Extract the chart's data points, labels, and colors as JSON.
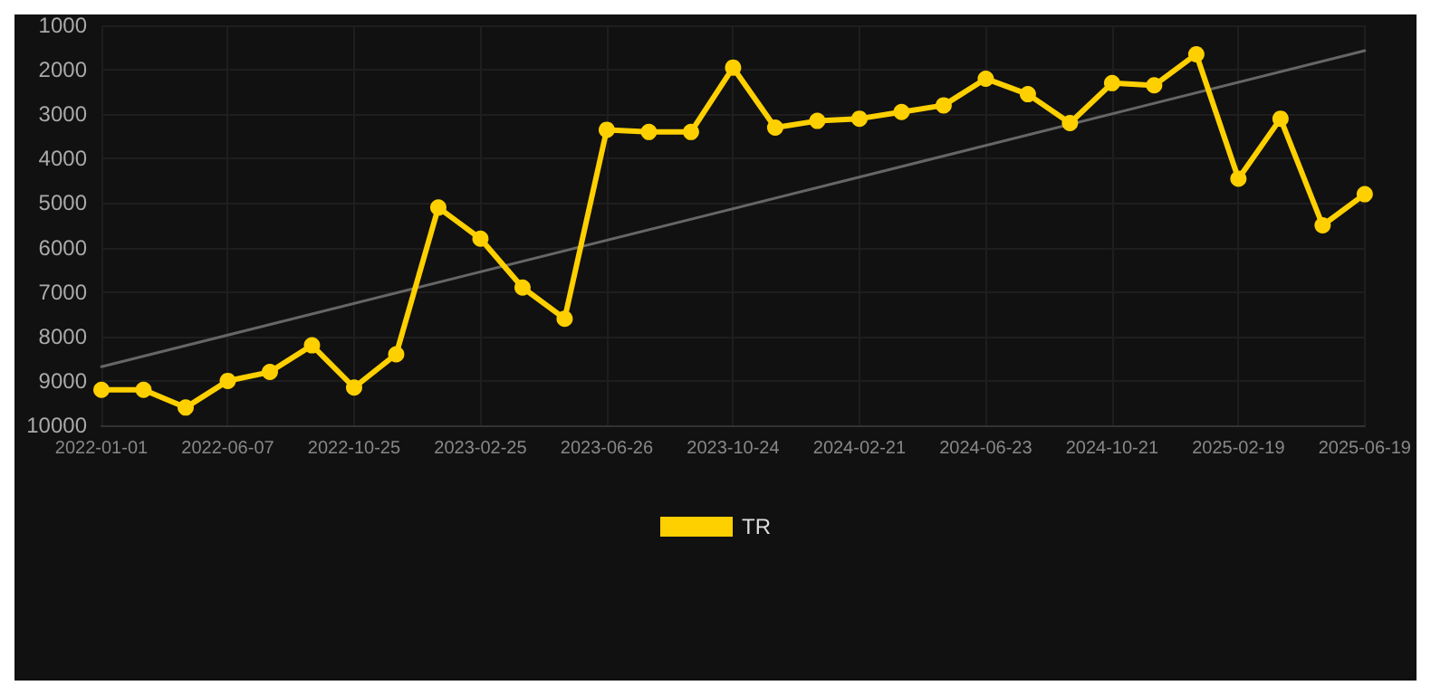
{
  "chart_data": {
    "type": "line",
    "categories": [
      "2022-01-01",
      null,
      null,
      "2022-06-07",
      null,
      null,
      "2022-10-25",
      null,
      null,
      "2023-02-25",
      null,
      null,
      "2023-06-26",
      null,
      null,
      "2023-10-24",
      null,
      null,
      "2024-02-21",
      null,
      null,
      "2024-06-23",
      null,
      null,
      "2024-10-21",
      null,
      null,
      "2025-02-19",
      null,
      null,
      "2025-06-19"
    ],
    "series": [
      {
        "name": "TR",
        "color": "#ffd000",
        "marker": "circle",
        "values": [
          9200,
          9200,
          9600,
          9000,
          8800,
          8200,
          9150,
          8400,
          5100,
          5800,
          6900,
          7600,
          3350,
          3400,
          3400,
          1950,
          3300,
          3150,
          3100,
          2950,
          2800,
          2200,
          2550,
          3200,
          2300,
          2350,
          1650,
          4450,
          3100,
          5500,
          4800
        ]
      },
      {
        "type": "line",
        "color": "#666666",
        "marker": "none",
        "values": [
          8680,
          null,
          null,
          null,
          null,
          null,
          null,
          null,
          null,
          null,
          null,
          null,
          null,
          null,
          null,
          null,
          null,
          null,
          null,
          null,
          null,
          null,
          null,
          null,
          null,
          null,
          null,
          null,
          null,
          null,
          1570
        ]
      }
    ],
    "ylim": [
      10000,
      1000
    ],
    "yticks": [
      1000,
      2000,
      3000,
      4000,
      5000,
      6000,
      7000,
      8000,
      9000,
      10000
    ],
    "grid": true,
    "legend": "bottom",
    "line_style": "solid"
  }
}
